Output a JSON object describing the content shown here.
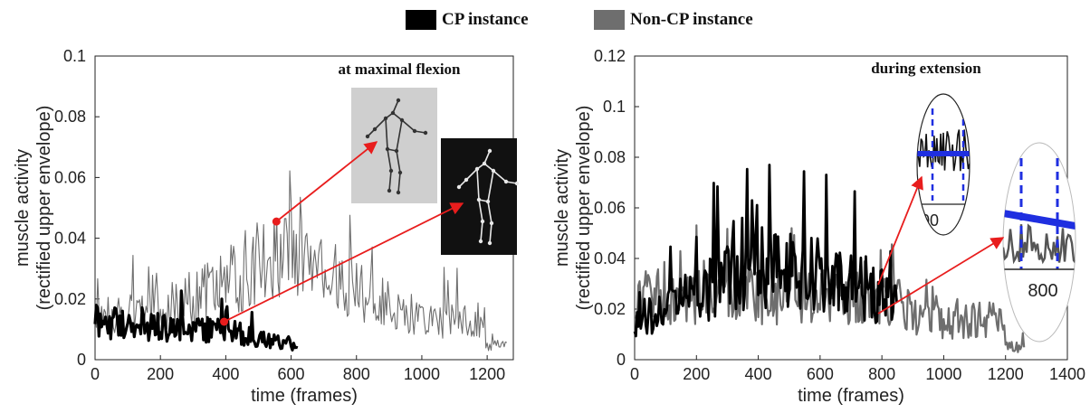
{
  "legend": {
    "items": [
      {
        "label": "CP instance",
        "color": "#000000"
      },
      {
        "label": "Non-CP instance",
        "color": "#6e6e6e"
      }
    ]
  },
  "colors": {
    "cp": "#000000",
    "noncp": "#6e6e6e",
    "arrow": "#e81d1d",
    "marker": "#e81d1d",
    "inset_line": "#1f2fe0",
    "skeleton_bg_light": "#cfcfcf",
    "skeleton_bg_dark": "#111111"
  },
  "chart_data": [
    {
      "type": "line",
      "title": "",
      "xlabel": "time (frames)",
      "ylabel": "muscle activity",
      "ylabel2": "(rectified upper envelope)",
      "xlim": [
        0,
        1280
      ],
      "ylim": [
        0,
        0.1
      ],
      "xticks": [
        0,
        200,
        400,
        600,
        800,
        1000,
        1200
      ],
      "yticks": [
        "0",
        "0.02",
        "0.04",
        "0.06",
        "0.08",
        "0.1"
      ],
      "annotation": "at maximal flexion",
      "series": [
        {
          "name": "Non-CP instance",
          "x_end": 1260,
          "envelope_x": [
            0,
            150,
            300,
            400,
            500,
            550,
            600,
            700,
            780,
            850,
            1000,
            1180,
            1200,
            1260
          ],
          "envelope_y": [
            0.019,
            0.018,
            0.025,
            0.03,
            0.04,
            0.045,
            0.043,
            0.036,
            0.03,
            0.025,
            0.016,
            0.015,
            0.006,
            0.006
          ]
        },
        {
          "name": "CP instance",
          "x_end": 620,
          "envelope_x": [
            0,
            200,
            400,
            500,
            620
          ],
          "envelope_y": [
            0.015,
            0.013,
            0.012,
            0.008,
            0.006
          ]
        }
      ],
      "markers": [
        {
          "x": 555,
          "y": 0.0455,
          "target": "flexion-skeleton-noncp"
        },
        {
          "x": 395,
          "y": 0.0125,
          "target": "flexion-skeleton-cp"
        }
      ]
    },
    {
      "type": "line",
      "title": "",
      "xlabel": "time (frames)",
      "ylabel": "muscle activity",
      "ylabel2": "(rectified upper envelope)",
      "xlim": [
        0,
        1400
      ],
      "ylim": [
        0,
        0.12
      ],
      "xticks": [
        0,
        200,
        400,
        600,
        800,
        1000,
        1200,
        1400
      ],
      "yticks": [
        "0",
        "0.02",
        "0.04",
        "0.06",
        "0.08",
        "0.1",
        "0.12"
      ],
      "annotation": "during extension",
      "inset_labels": [
        "00",
        "800"
      ],
      "series": [
        {
          "name": "Non-CP instance",
          "x_end": 1260,
          "envelope_x": [
            0,
            850,
            900,
            1000,
            1180,
            1200,
            1260
          ],
          "envelope_y": [
            0.03,
            0.03,
            0.02,
            0.018,
            0.02,
            0.006,
            0.006
          ]
        },
        {
          "name": "CP instance",
          "x_end": 850,
          "envelope_x": [
            0,
            100,
            200,
            300,
            400,
            500,
            600,
            700,
            800,
            850
          ],
          "envelope_y": [
            0.02,
            0.025,
            0.03,
            0.04,
            0.045,
            0.042,
            0.04,
            0.038,
            0.03,
            0.03
          ]
        }
      ]
    }
  ]
}
